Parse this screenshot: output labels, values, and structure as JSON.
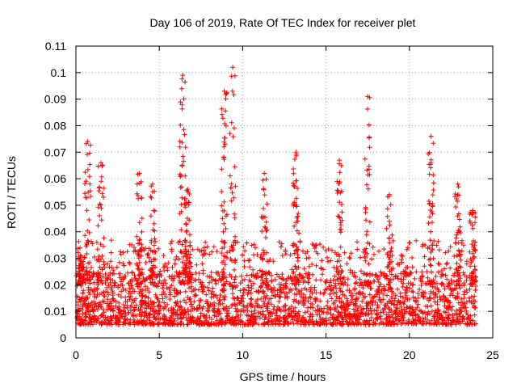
{
  "chart_data": {
    "type": "scatter",
    "title": "Day 106 of 2019, Rate Of TEC Index for receiver plet",
    "xlabel": "GPS time / hours",
    "ylabel": "ROTI / TECUs",
    "xlim": [
      0,
      25
    ],
    "ylim": [
      0,
      0.11
    ],
    "xticks": [
      0,
      5,
      10,
      15,
      20,
      25
    ],
    "xtick_labels": [
      "0",
      "5",
      "10",
      "15",
      "20",
      "25"
    ],
    "yticks": [
      0,
      0.01,
      0.02,
      0.03,
      0.04,
      0.05,
      0.06,
      0.07,
      0.08,
      0.09,
      0.1,
      0.11
    ],
    "ytick_labels": [
      "0",
      "0.01",
      "0.02",
      "0.03",
      "0.04",
      "0.05",
      "0.06",
      "0.07",
      "0.08",
      "0.09",
      "0.1",
      "0.11"
    ],
    "grid": true,
    "marker": "+",
    "color": "#ff0000",
    "series": [
      {
        "name": "ROTI",
        "x_range": [
          0,
          24
        ],
        "baseline_range": [
          0.005,
          0.025
        ],
        "peaks": [
          {
            "x": 0.3,
            "y": 0.031
          },
          {
            "x": 0.7,
            "y": 0.074
          },
          {
            "x": 1.5,
            "y": 0.066
          },
          {
            "x": 3.8,
            "y": 0.062
          },
          {
            "x": 4.6,
            "y": 0.058
          },
          {
            "x": 6.4,
            "y": 0.099
          },
          {
            "x": 6.7,
            "y": 0.056
          },
          {
            "x": 8.9,
            "y": 0.093
          },
          {
            "x": 9.4,
            "y": 0.102
          },
          {
            "x": 11.3,
            "y": 0.062
          },
          {
            "x": 13.2,
            "y": 0.07
          },
          {
            "x": 15.8,
            "y": 0.067
          },
          {
            "x": 17.5,
            "y": 0.091
          },
          {
            "x": 18.8,
            "y": 0.054
          },
          {
            "x": 21.3,
            "y": 0.076
          },
          {
            "x": 22.9,
            "y": 0.058
          },
          {
            "x": 23.8,
            "y": 0.048
          }
        ]
      }
    ]
  }
}
